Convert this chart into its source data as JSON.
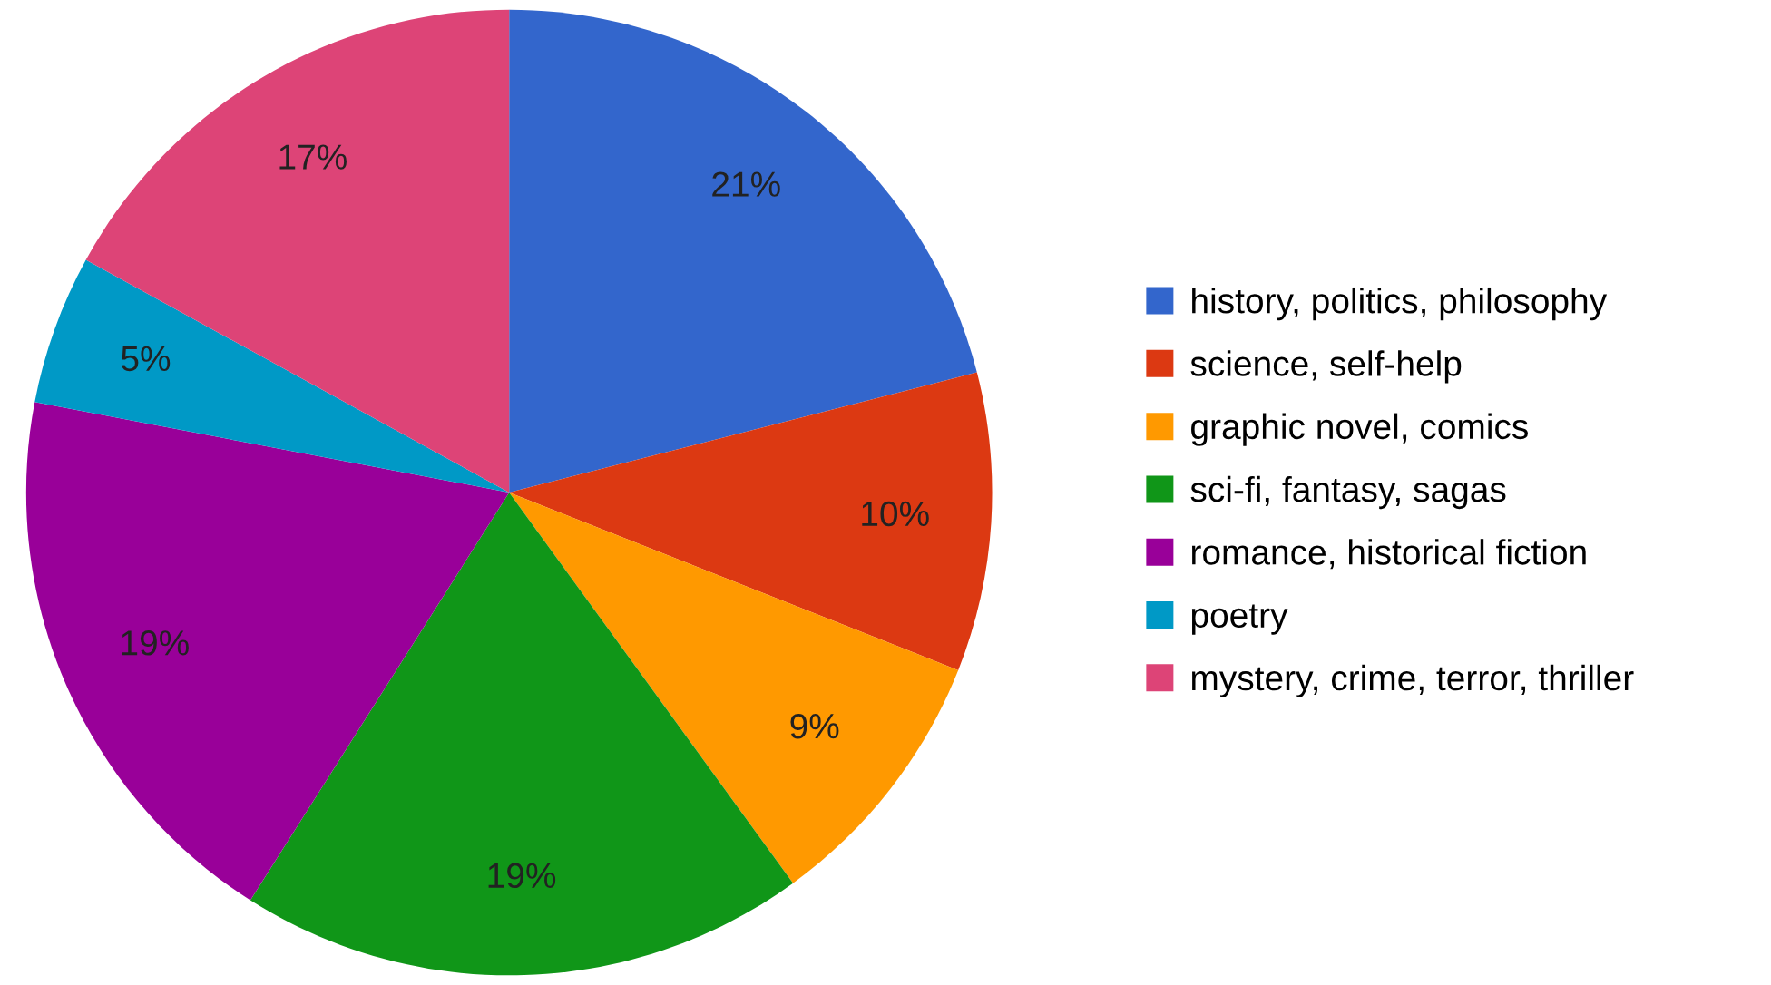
{
  "chart_data": {
    "type": "pie",
    "categories": [
      "history, politics, philosophy",
      "science, self-help",
      "graphic novel, comics",
      "sci-fi, fantasy, sagas",
      "romance, historical fiction",
      "poetry",
      "mystery, crime, terror, thriller"
    ],
    "values": [
      21,
      10,
      9,
      19,
      19,
      5,
      17
    ],
    "colors": [
      "#3366cc",
      "#dc3912",
      "#ff9900",
      "#109618",
      "#990099",
      "#0099c6",
      "#dd4477"
    ],
    "value_labels": [
      "21%",
      "10%",
      "9%",
      "19%",
      "19%",
      "5%",
      "17%"
    ],
    "legend": "right"
  }
}
